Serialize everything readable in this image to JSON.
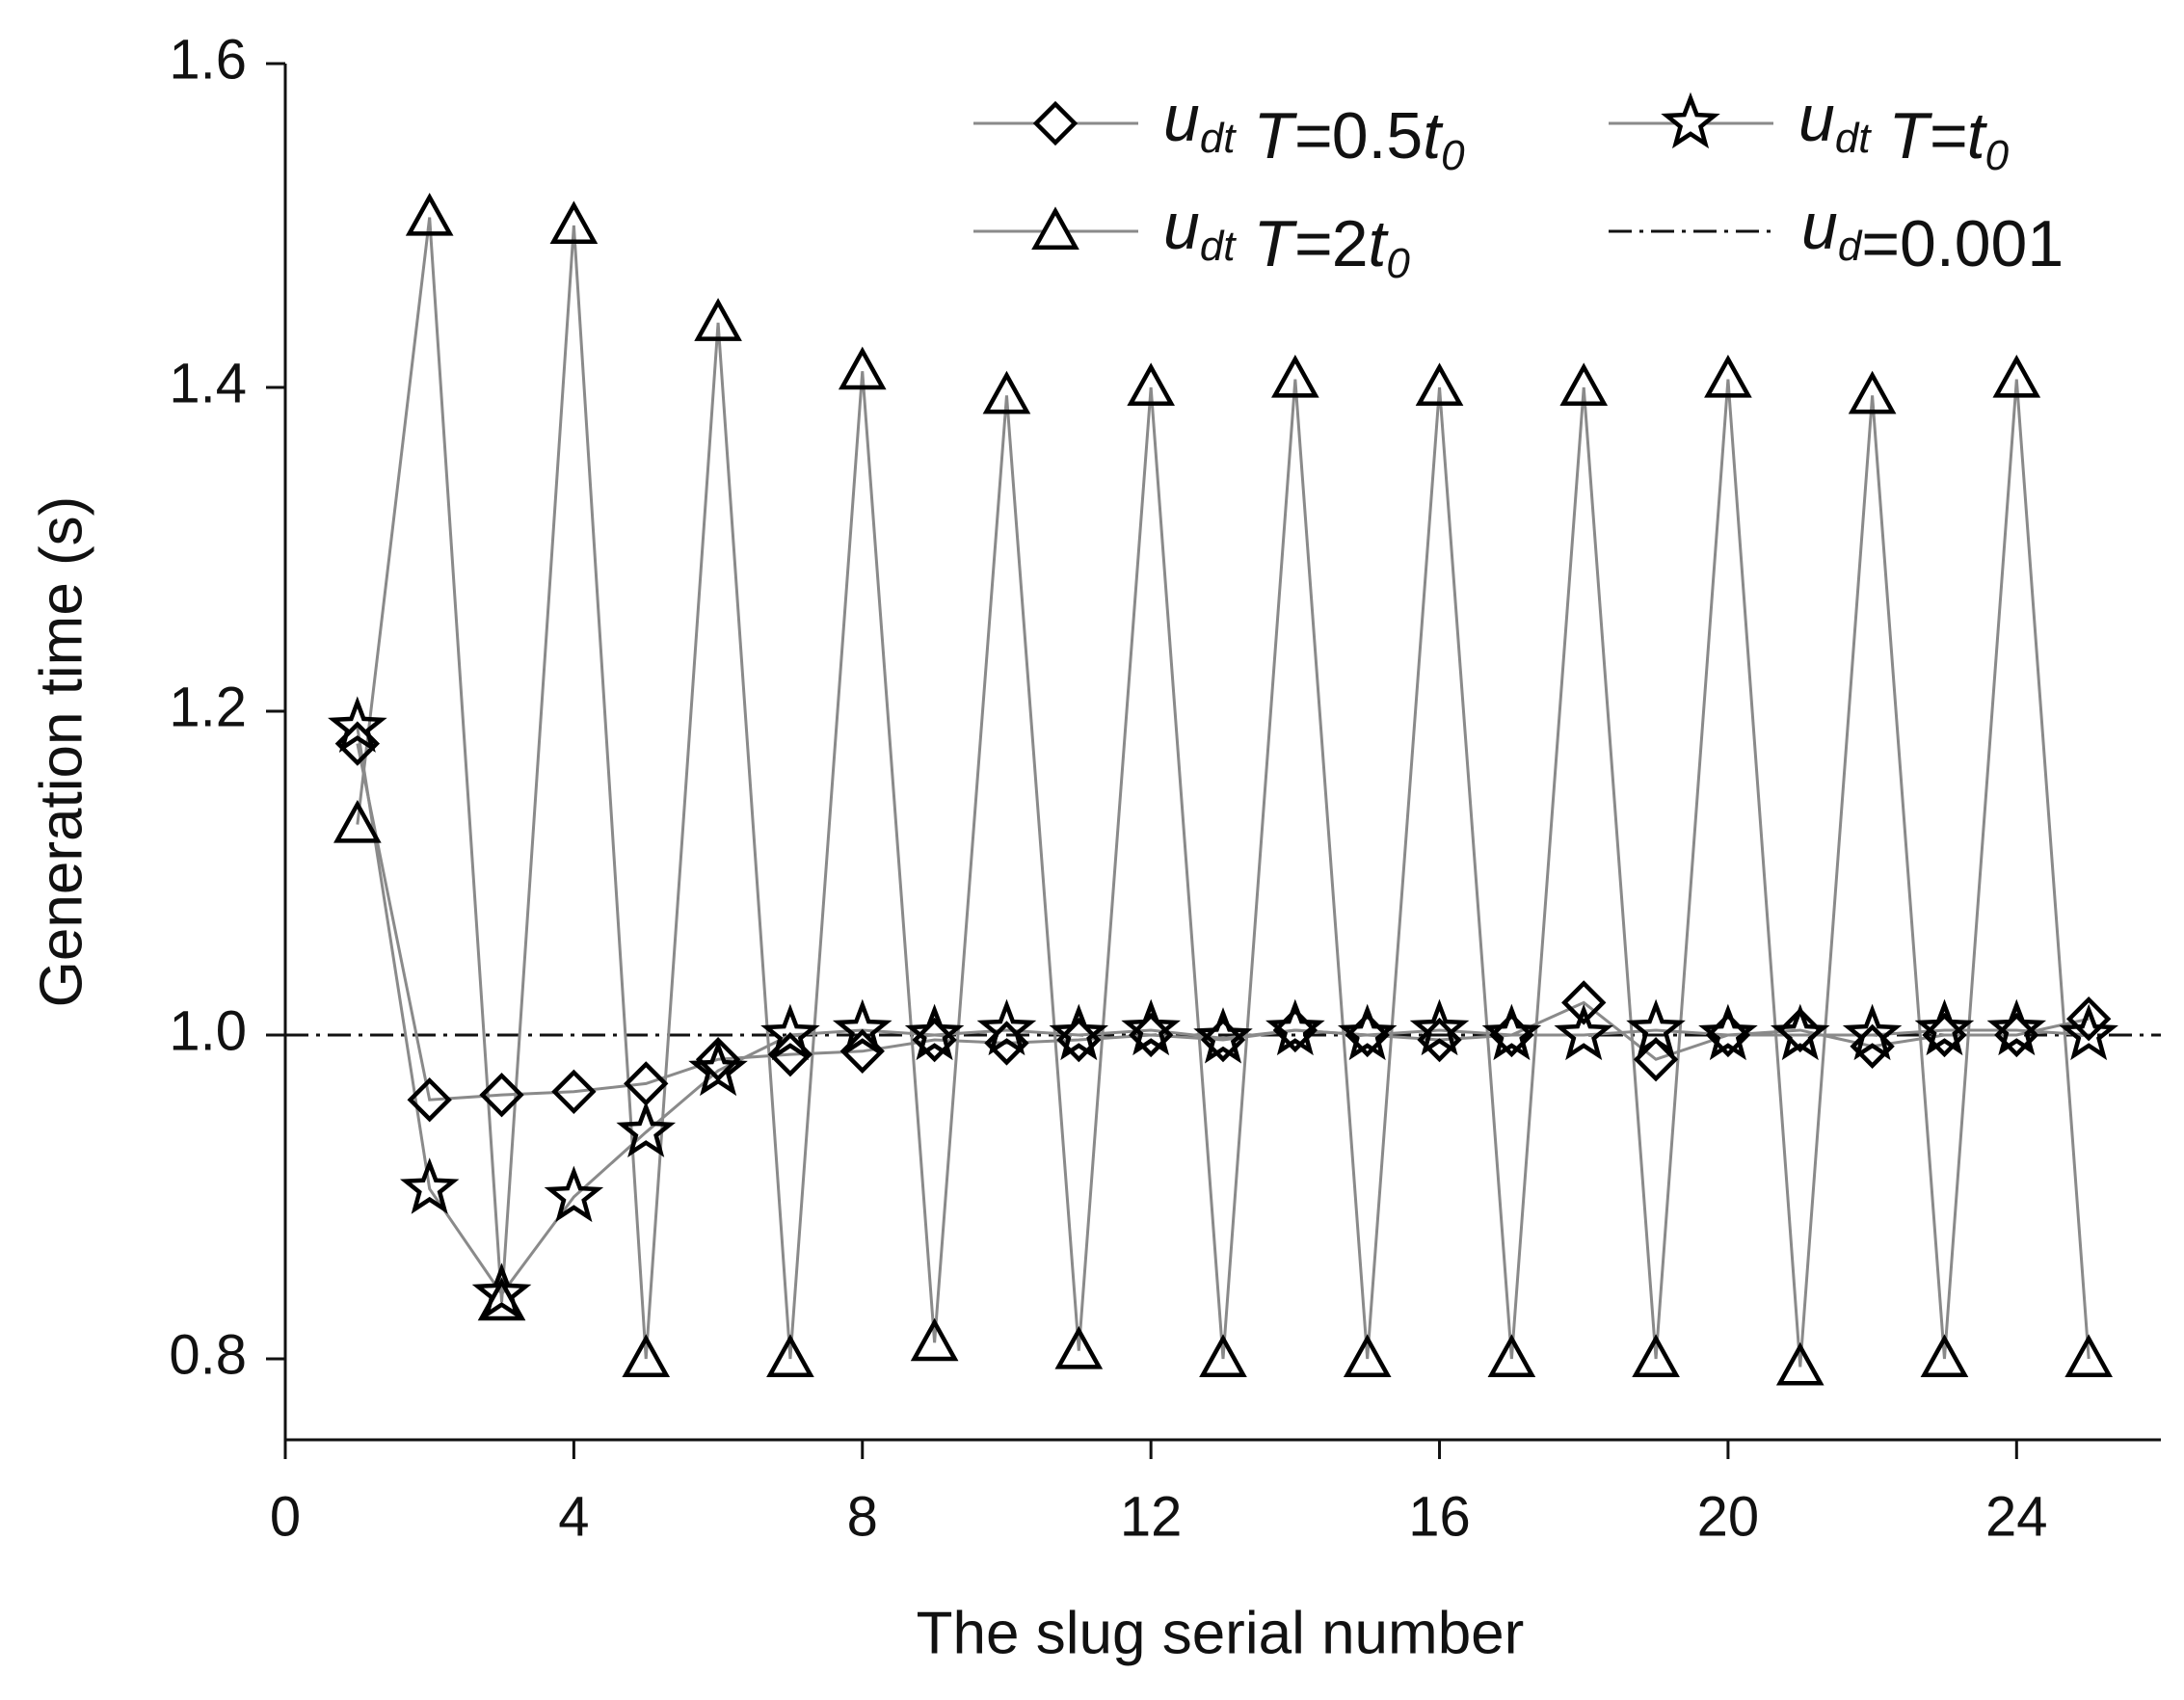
{
  "chart_data": {
    "type": "line",
    "x_label": "The slug serial number",
    "y_label": "Generation time (s)",
    "x": [
      1,
      2,
      3,
      4,
      5,
      6,
      7,
      8,
      9,
      10,
      11,
      12,
      13,
      14,
      15,
      16,
      17,
      18,
      19,
      20,
      21,
      22,
      23,
      24,
      25
    ],
    "series": [
      {
        "name": "udt T=0.5t0",
        "marker": "diamond",
        "color": "#000000",
        "values": [
          1.18,
          0.96,
          0.963,
          0.965,
          0.97,
          0.985,
          0.988,
          0.99,
          0.997,
          0.995,
          0.997,
          1.0,
          0.997,
          1.003,
          1.0,
          0.997,
          1.0,
          1.02,
          0.985,
          1.0,
          1.003,
          0.993,
          1.0,
          1.0,
          1.01
        ]
      },
      {
        "name": "udt T=t0",
        "marker": "star",
        "color": "#000000",
        "values": [
          1.19,
          0.905,
          0.84,
          0.9,
          0.94,
          0.978,
          1.0,
          1.003,
          1.0,
          1.003,
          1.0,
          1.003,
          0.998,
          1.003,
          1.0,
          1.003,
          1.0,
          1.0,
          1.003,
          1.0,
          1.0,
          1.0,
          1.003,
          1.003,
          1.0
        ]
      },
      {
        "name": "udt T=2t0",
        "marker": "triangle",
        "color": "#000000",
        "values": [
          1.13,
          1.505,
          0.835,
          1.5,
          0.8,
          1.44,
          0.8,
          1.41,
          0.81,
          1.395,
          0.805,
          1.4,
          0.8,
          1.405,
          0.8,
          1.4,
          0.8,
          1.4,
          0.8,
          1.405,
          0.795,
          1.395,
          0.8,
          1.405,
          0.8
        ]
      }
    ],
    "reference": {
      "name": "ud=0.001",
      "value": 1.0
    },
    "xlim": [
      0,
      26
    ],
    "ylim": [
      0.75,
      1.6
    ],
    "xticks": [
      0,
      4,
      8,
      12,
      16,
      20,
      24
    ],
    "yticks": [
      0.8,
      {
        "value": 1.0,
        "label": "1.0"
      },
      1.2,
      1.4,
      1.6
    ]
  }
}
